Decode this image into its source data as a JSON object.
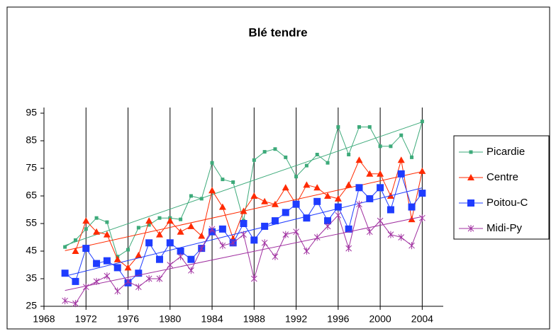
{
  "chart_data": {
    "type": "line",
    "title": "Blé tendre",
    "x": [
      1970,
      1971,
      1972,
      1973,
      1974,
      1975,
      1976,
      1977,
      1978,
      1979,
      1980,
      1981,
      1982,
      1983,
      1984,
      1985,
      1986,
      1987,
      1988,
      1989,
      1990,
      1991,
      1992,
      1993,
      1994,
      1995,
      1996,
      1997,
      1998,
      1999,
      2000,
      2001,
      2002,
      2003,
      2004
    ],
    "series": [
      {
        "name": "Picardie",
        "color": "#3daa7a",
        "marker": "square-small",
        "values": [
          46.5,
          49,
          53,
          57,
          55.5,
          43,
          45.5,
          53.5,
          54.5,
          57,
          57,
          56.5,
          65,
          64,
          77,
          71,
          70,
          56,
          78,
          81,
          82,
          79,
          72,
          76,
          80,
          77,
          90,
          80,
          90,
          90,
          83,
          83,
          87,
          79,
          92
        ]
      },
      {
        "name": "Centre",
        "color": "#ff2a00",
        "marker": "triangle",
        "values": [
          null,
          45,
          56,
          52,
          51,
          42,
          39,
          43.5,
          56,
          51,
          56,
          52,
          54,
          50.5,
          67,
          61,
          49.5,
          59.5,
          65,
          63,
          62,
          68,
          62,
          69,
          68,
          65,
          64,
          69,
          78,
          73,
          73,
          65,
          78,
          56.5,
          74
        ]
      },
      {
        "name": "Poitou-C",
        "color": "#1f3cff",
        "marker": "square",
        "values": [
          37,
          34,
          46,
          40.5,
          41.5,
          39,
          33.5,
          37,
          48,
          42,
          48,
          45,
          42,
          46,
          52,
          53,
          48,
          55,
          49,
          54,
          56,
          59,
          62,
          57,
          63,
          56,
          61,
          53,
          68,
          64,
          68,
          60,
          73,
          61,
          66
        ]
      },
      {
        "name": "Midi-Py",
        "color": "#a030a0",
        "marker": "star",
        "values": [
          27,
          26,
          32,
          34,
          36,
          30.5,
          34,
          32,
          35,
          35,
          40,
          43,
          38,
          46,
          53,
          47,
          48,
          51,
          35,
          48,
          43,
          51,
          52,
          45,
          50,
          54,
          58,
          46,
          62,
          52,
          56,
          51,
          50,
          47,
          57
        ]
      }
    ],
    "xlim": [
      1968,
      2006
    ],
    "xticks": [
      1968,
      1972,
      1976,
      1980,
      1984,
      1988,
      1992,
      1996,
      2000,
      2004
    ],
    "ylim": [
      25,
      95
    ],
    "yticks": [
      25,
      35,
      45,
      55,
      65,
      75,
      85,
      95
    ],
    "grid": "x",
    "trendlines": true,
    "legend": "right"
  }
}
